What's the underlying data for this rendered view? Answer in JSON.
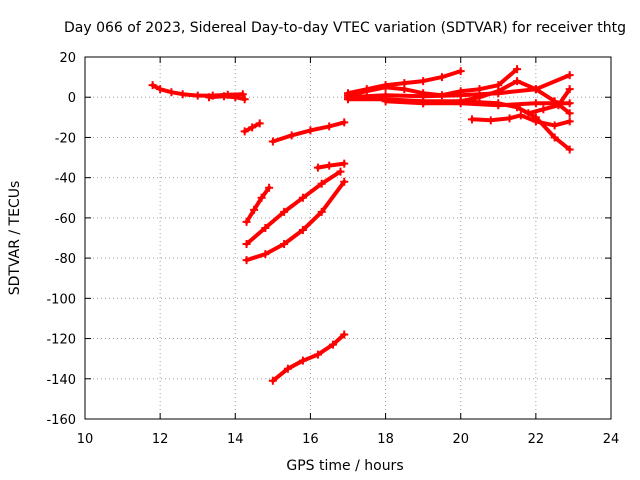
{
  "chart_data": {
    "type": "line",
    "title": "Day 066 of 2023, Sidereal Day-to-day VTEC variation (SDTVAR) for receiver thtg",
    "xlabel": "GPS time / hours",
    "ylabel": "SDTVAR / TECUs",
    "xlim": [
      10,
      24
    ],
    "ylim": [
      -160,
      20
    ],
    "xticks": [
      10,
      12,
      14,
      16,
      18,
      20,
      22,
      24
    ],
    "yticks": [
      20,
      0,
      -20,
      -40,
      -60,
      -80,
      -100,
      -120,
      -140,
      -160
    ],
    "grid": true,
    "legend": "none",
    "color": "#ff0000",
    "series": [
      {
        "x": [
          11.8,
          12.0,
          12.3,
          12.6,
          13.0,
          13.4,
          13.8,
          14.2
        ],
        "y": [
          6,
          4,
          2.5,
          1.5,
          0.8,
          0.8,
          1.2,
          1.5
        ]
      },
      {
        "x": [
          13.3,
          13.7,
          14.0,
          14.25
        ],
        "y": [
          0,
          0.5,
          0,
          -1
        ]
      },
      {
        "x": [
          14.25,
          14.45,
          14.65
        ],
        "y": [
          -17,
          -15,
          -13
        ]
      },
      {
        "x": [
          14.3,
          14.5,
          14.7,
          14.9
        ],
        "y": [
          -62,
          -56,
          -50,
          -45
        ]
      },
      {
        "x": [
          14.3,
          14.8,
          15.3,
          15.8,
          16.3,
          16.8
        ],
        "y": [
          -73,
          -65,
          -57,
          -50,
          -43,
          -37
        ]
      },
      {
        "x": [
          14.3,
          14.8,
          15.3,
          15.8,
          16.3,
          16.9
        ],
        "y": [
          -81,
          -78,
          -73,
          -66,
          -57,
          -42
        ]
      },
      {
        "x": [
          15.0,
          15.5,
          16.0,
          16.5,
          16.9
        ],
        "y": [
          -22,
          -19,
          -16.5,
          -14.5,
          -12.5
        ]
      },
      {
        "x": [
          16.2,
          16.5,
          16.9
        ],
        "y": [
          -35,
          -34,
          -33
        ]
      },
      {
        "x": [
          15.0,
          15.4,
          15.8,
          16.2,
          16.6,
          16.9
        ],
        "y": [
          -141,
          -135,
          -131,
          -128,
          -123,
          -118
        ]
      },
      {
        "x": [
          17.0,
          17.5,
          18.0,
          18.5,
          19.0,
          19.5,
          20.0
        ],
        "y": [
          2,
          4,
          6,
          7,
          8,
          10,
          13
        ]
      },
      {
        "x": [
          17.0,
          17.5,
          18.0,
          18.5,
          19.0,
          19.5,
          20.0,
          20.5,
          21.0,
          21.5
        ],
        "y": [
          1,
          3,
          5,
          4,
          2,
          1,
          3,
          4,
          6,
          14
        ]
      },
      {
        "x": [
          17.0,
          18.0,
          19.0,
          20.0,
          21.0,
          22.0,
          22.9
        ],
        "y": [
          0,
          1,
          0.5,
          1,
          2,
          4,
          11
        ]
      },
      {
        "x": [
          17.0,
          18.0,
          19.0,
          20.0,
          20.5,
          21.0,
          21.5,
          22.0,
          22.5,
          22.9
        ],
        "y": [
          -1,
          -1,
          -2,
          -2,
          0,
          3,
          8,
          4,
          -2,
          -8
        ]
      },
      {
        "x": [
          18.0,
          19.0,
          20.0,
          21.0,
          21.5,
          22.0,
          22.5,
          22.9
        ],
        "y": [
          -2,
          -3,
          -2,
          -3,
          -5,
          -10,
          -20,
          -26
        ]
      },
      {
        "x": [
          19.0,
          20.0,
          21.0,
          22.0,
          22.9
        ],
        "y": [
          -3,
          -3,
          -4,
          -3,
          -3
        ]
      },
      {
        "x": [
          20.3,
          20.8,
          21.3,
          21.6,
          22.0,
          22.5,
          22.9
        ],
        "y": [
          -11,
          -11.5,
          -10.5,
          -9,
          -12,
          -14,
          -12
        ]
      },
      {
        "x": [
          21.8,
          22.2,
          22.6,
          22.9
        ],
        "y": [
          -8,
          -6,
          -4,
          4
        ]
      }
    ]
  }
}
